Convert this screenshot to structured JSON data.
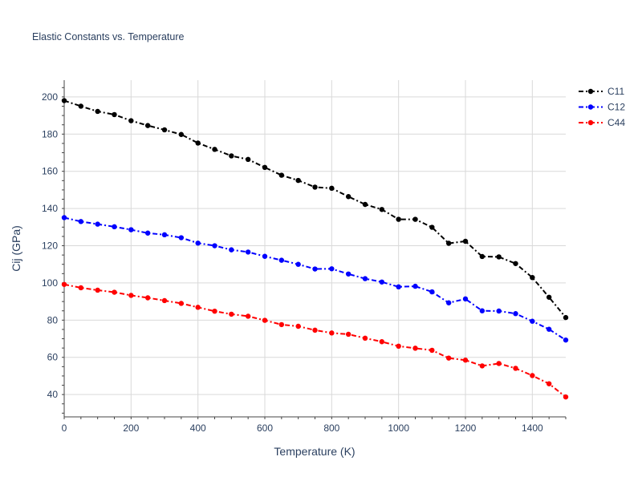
{
  "chart_data": {
    "type": "line",
    "title": "Elastic Constants vs. Temperature",
    "xlabel": "Temperature (K)",
    "ylabel": "Cij (GPa)",
    "xlim": [
      0,
      1500
    ],
    "ylim": [
      28,
      209
    ],
    "xticks": [
      0,
      200,
      400,
      600,
      800,
      1000,
      1200,
      1400
    ],
    "yticks": [
      40,
      60,
      80,
      100,
      120,
      140,
      160,
      180,
      200
    ],
    "x": [
      0,
      50,
      100,
      150,
      200,
      250,
      300,
      350,
      400,
      450,
      500,
      550,
      600,
      650,
      700,
      750,
      800,
      850,
      900,
      950,
      1000,
      1050,
      1100,
      1150,
      1200,
      1250,
      1300,
      1350,
      1400,
      1450,
      1500
    ],
    "grid": true,
    "legend_position": "top-right",
    "series": [
      {
        "name": "C11",
        "color": "#000000",
        "values": [
          198,
          195,
          192.2,
          190.5,
          187.2,
          184.6,
          182.3,
          179.8,
          175.2,
          171.8,
          168.3,
          166.4,
          162.1,
          157.9,
          155.1,
          151.5,
          150.9,
          146.4,
          142.2,
          139.5,
          134.2,
          134.2,
          129.9,
          121.3,
          122.4,
          114.2,
          114.0,
          110.4,
          102.9,
          92.3,
          81.4
        ]
      },
      {
        "name": "C12",
        "color": "#0000ff",
        "values": [
          135.1,
          133.0,
          131.6,
          130.2,
          128.6,
          126.8,
          125.9,
          124.3,
          121.4,
          120.0,
          117.8,
          116.6,
          114.3,
          112.2,
          110.0,
          107.5,
          107.6,
          104.8,
          102.3,
          100.5,
          97.9,
          98.2,
          95.2,
          89.3,
          91.4,
          85.0,
          84.9,
          83.5,
          79.4,
          75.1,
          69.3
        ]
      },
      {
        "name": "C44",
        "color": "#ff0000",
        "values": [
          99.2,
          97.4,
          96.1,
          95.0,
          93.3,
          92.0,
          90.5,
          89.0,
          86.9,
          84.8,
          83.2,
          82.1,
          79.9,
          77.6,
          76.7,
          74.6,
          73.1,
          72.4,
          70.3,
          68.4,
          66.0,
          64.9,
          63.8,
          59.6,
          58.5,
          55.4,
          56.7,
          54.1,
          50.2,
          45.8,
          38.7
        ]
      }
    ]
  }
}
